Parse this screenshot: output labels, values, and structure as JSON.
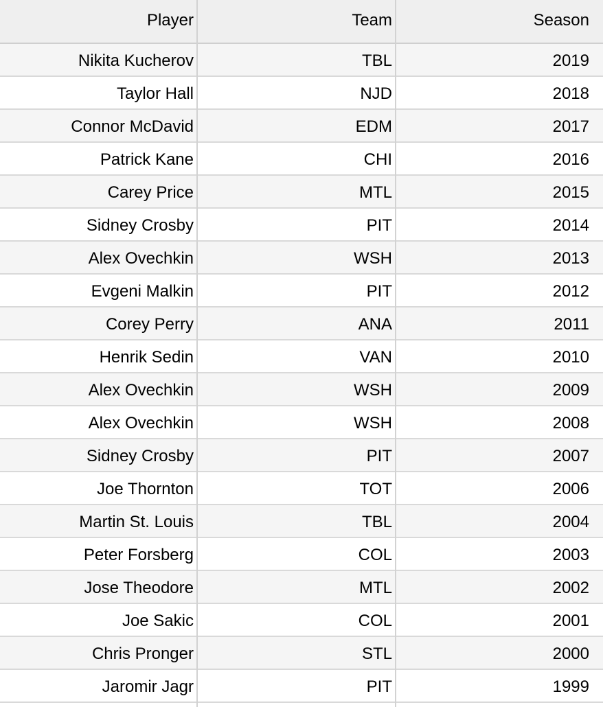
{
  "table": {
    "columns": [
      "Player",
      "Team",
      "Season"
    ],
    "rows": [
      [
        "Nikita Kucherov",
        "TBL",
        "2019"
      ],
      [
        "Taylor Hall",
        "NJD",
        "2018"
      ],
      [
        "Connor McDavid",
        "EDM",
        "2017"
      ],
      [
        "Patrick Kane",
        "CHI",
        "2016"
      ],
      [
        "Carey Price",
        "MTL",
        "2015"
      ],
      [
        "Sidney Crosby",
        "PIT",
        "2014"
      ],
      [
        "Alex Ovechkin",
        "WSH",
        "2013"
      ],
      [
        "Evgeni Malkin",
        "PIT",
        "2012"
      ],
      [
        "Corey Perry",
        "ANA",
        "2011"
      ],
      [
        "Henrik Sedin",
        "VAN",
        "2010"
      ],
      [
        "Alex Ovechkin",
        "WSH",
        "2009"
      ],
      [
        "Alex Ovechkin",
        "WSH",
        "2008"
      ],
      [
        "Sidney Crosby",
        "PIT",
        "2007"
      ],
      [
        "Joe Thornton",
        "TOT",
        "2006"
      ],
      [
        "Martin St. Louis",
        "TBL",
        "2004"
      ],
      [
        "Peter Forsberg",
        "COL",
        "2003"
      ],
      [
        "Jose Theodore",
        "MTL",
        "2002"
      ],
      [
        "Joe Sakic",
        "COL",
        "2001"
      ],
      [
        "Chris Pronger",
        "STL",
        "2000"
      ],
      [
        "Jaromir Jagr",
        "PIT",
        "1999"
      ]
    ]
  },
  "colors": {
    "header_bg": "#efefef",
    "row_alt_bg": "#f5f5f5",
    "row_bg": "#ffffff",
    "grid_line": "#d2d2d2"
  }
}
